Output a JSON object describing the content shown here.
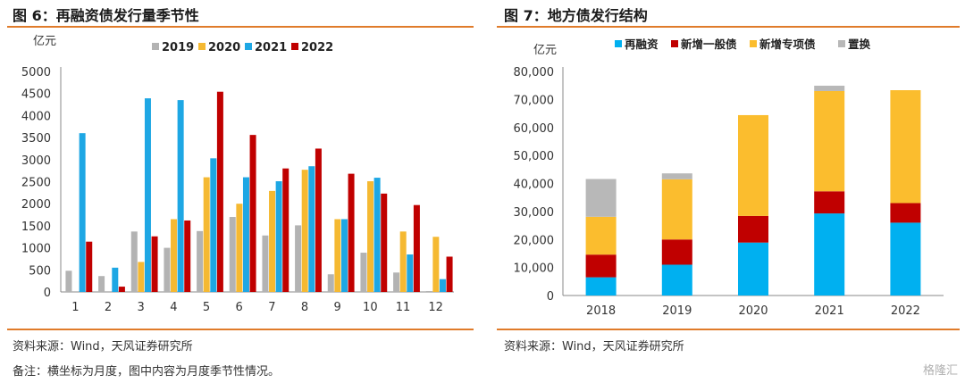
{
  "left": {
    "title": "图 6：再融资债发行量季节性",
    "source": "资料来源：Wind，天风证券研究所"
  },
  "right": {
    "title": "图 7：地方债发行结构",
    "source": "资料来源：Wind，天风证券研究所"
  },
  "note": "备注：横坐标为月度，图中内容为月度季节性情况。",
  "watermark": "格隆汇",
  "chart_data": [
    {
      "type": "bar",
      "ylabel": "亿元",
      "ylim": [
        0,
        5000
      ],
      "yticks": [
        0,
        500,
        1000,
        1500,
        2000,
        2500,
        3000,
        3500,
        4000,
        4500,
        5000
      ],
      "categories": [
        "1",
        "2",
        "3",
        "4",
        "5",
        "6",
        "7",
        "8",
        "9",
        "10",
        "11",
        "12"
      ],
      "legend_position": "top",
      "series": [
        {
          "name": "2019",
          "color": "#b3b3b3",
          "values": [
            480,
            360,
            1370,
            1000,
            1380,
            1700,
            1280,
            1510,
            400,
            890,
            440,
            20
          ]
        },
        {
          "name": "2020",
          "color": "#f5b932",
          "values": [
            0,
            0,
            680,
            1650,
            2600,
            2000,
            2290,
            2770,
            1650,
            2510,
            1370,
            1250
          ]
        },
        {
          "name": "2021",
          "color": "#1ea7e4",
          "values": [
            3600,
            550,
            4390,
            4350,
            3030,
            2600,
            2510,
            2850,
            1650,
            2590,
            850,
            290
          ]
        },
        {
          "name": "2022",
          "color": "#c00000",
          "values": [
            1140,
            120,
            1260,
            1620,
            4540,
            3560,
            2800,
            3250,
            2680,
            2230,
            1970,
            800
          ]
        }
      ]
    },
    {
      "type": "bar",
      "stacked": true,
      "ylabel": "亿元",
      "ylim": [
        0,
        80000
      ],
      "yticks": [
        "0",
        "10,000",
        "20,000",
        "30,000",
        "40,000",
        "50,000",
        "60,000",
        "70,000",
        "80,000"
      ],
      "categories": [
        "2018",
        "2019",
        "2020",
        "2021",
        "2022"
      ],
      "legend_position": "top",
      "series": [
        {
          "name": "再融资",
          "color": "#00b0f0",
          "values": [
            6500,
            11000,
            18900,
            29300,
            26000
          ]
        },
        {
          "name": "新增一般债",
          "color": "#c00000",
          "values": [
            8100,
            9000,
            9500,
            7900,
            7000
          ]
        },
        {
          "name": "新增专项债",
          "color": "#fbbd2e",
          "values": [
            13500,
            21500,
            36000,
            35800,
            40300
          ]
        },
        {
          "name": "置换",
          "color": "#b8b8b8",
          "values": [
            13500,
            2100,
            0,
            1900,
            0
          ]
        }
      ]
    }
  ]
}
